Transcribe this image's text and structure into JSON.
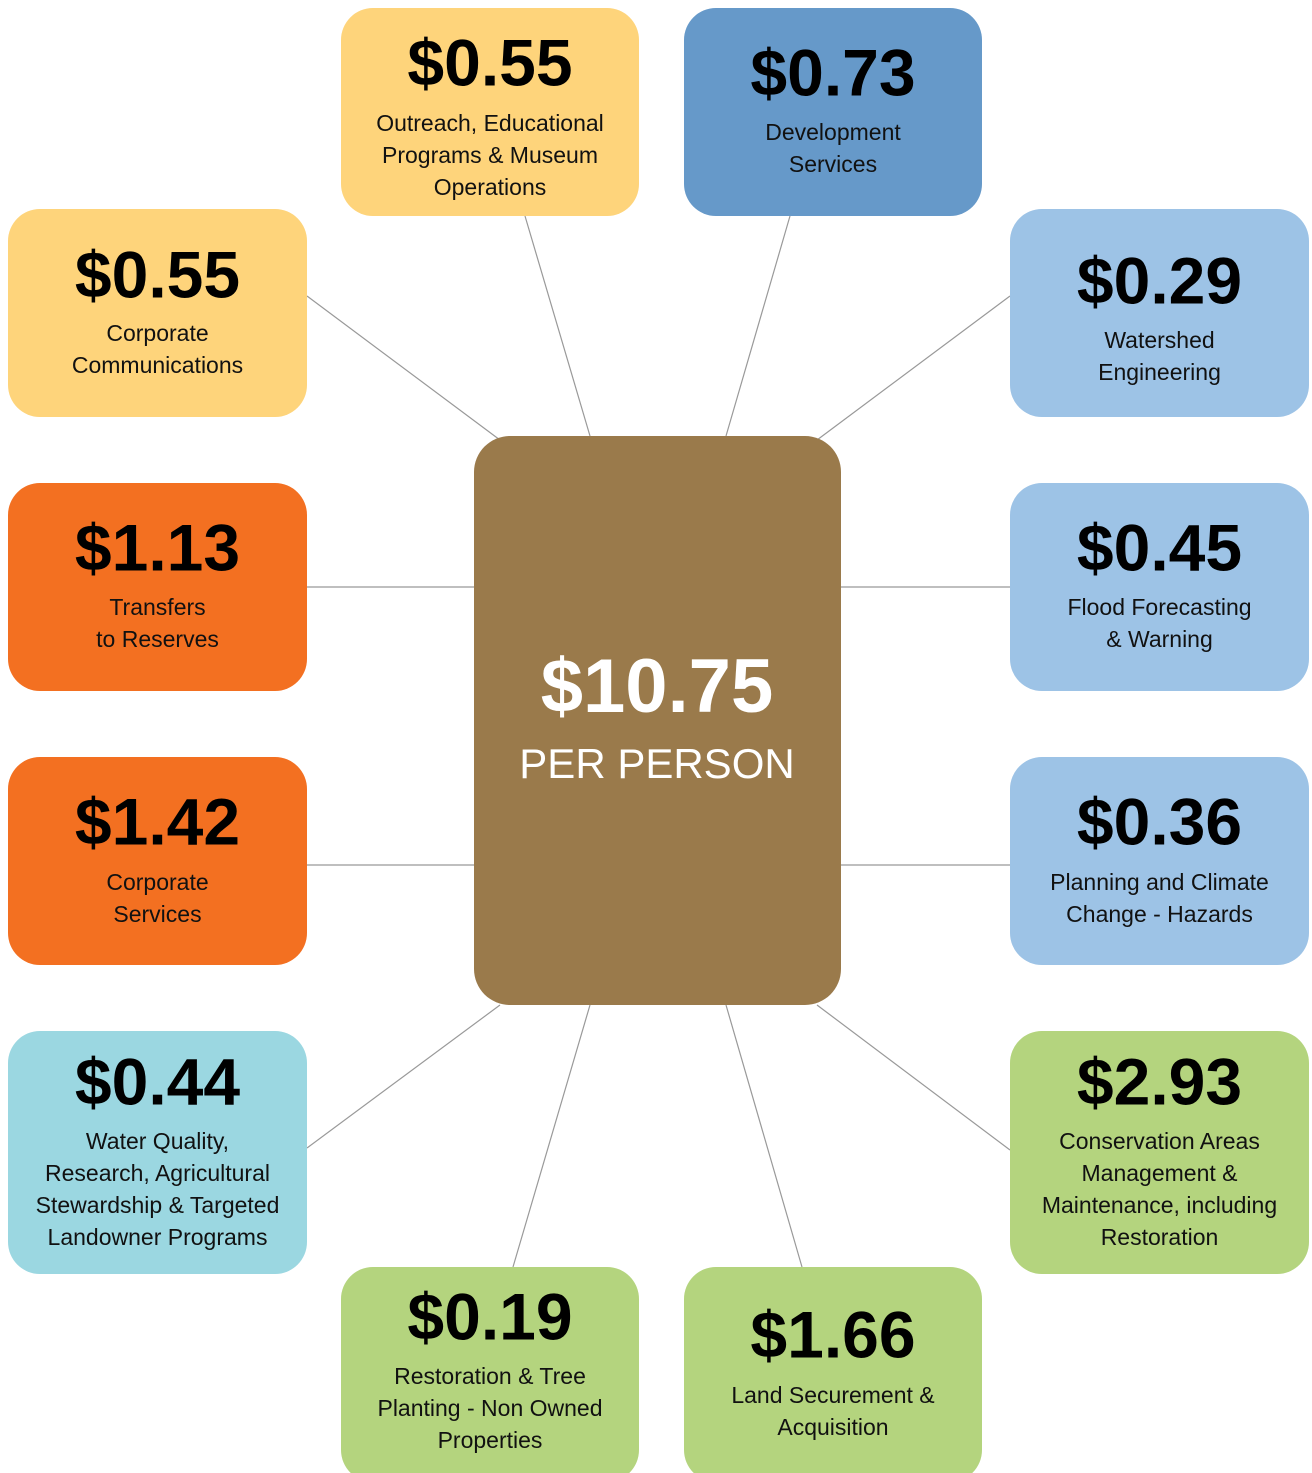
{
  "center": {
    "amount": "$10.75",
    "label": "PER PERSON",
    "color": "#9a7a4b"
  },
  "nodes": [
    {
      "amount": "$0.55",
      "lines": [
        "Outreach, Educational",
        "Programs & Museum",
        "Operations"
      ],
      "color": "#fed47b"
    },
    {
      "amount": "$0.73",
      "lines": [
        "Development",
        "Services"
      ],
      "color": "#6699c9"
    },
    {
      "amount": "$0.55",
      "lines": [
        "Corporate",
        "Communications"
      ],
      "color": "#fed47b"
    },
    {
      "amount": "$0.29",
      "lines": [
        "Watershed",
        "Engineering"
      ],
      "color": "#9dc3e6"
    },
    {
      "amount": "$1.13",
      "lines": [
        "Transfers",
        "to Reserves"
      ],
      "color": "#f37021"
    },
    {
      "amount": "$0.45",
      "lines": [
        "Flood Forecasting",
        "& Warning"
      ],
      "color": "#9dc3e6"
    },
    {
      "amount": "$1.42",
      "lines": [
        "Corporate",
        "Services"
      ],
      "color": "#f37021"
    },
    {
      "amount": "$0.36",
      "lines": [
        "Planning and Climate",
        "Change - Hazards"
      ],
      "color": "#9dc3e6"
    },
    {
      "amount": "$0.44",
      "lines": [
        "Water Quality,",
        "Research, Agricultural",
        "Stewardship & Targeted",
        "Landowner Programs"
      ],
      "color": "#9bd7e1"
    },
    {
      "amount": "$2.93",
      "lines": [
        "Conservation Areas",
        "Management &",
        "Maintenance, including",
        "Restoration"
      ],
      "color": "#b4d47e"
    },
    {
      "amount": "$0.19",
      "lines": [
        "Restoration & Tree",
        "Planting - Non Owned",
        "Properties"
      ],
      "color": "#b4d47e"
    },
    {
      "amount": "$1.66",
      "lines": [
        "Land Securement &",
        "Acquisition"
      ],
      "color": "#b4d47e"
    }
  ]
}
